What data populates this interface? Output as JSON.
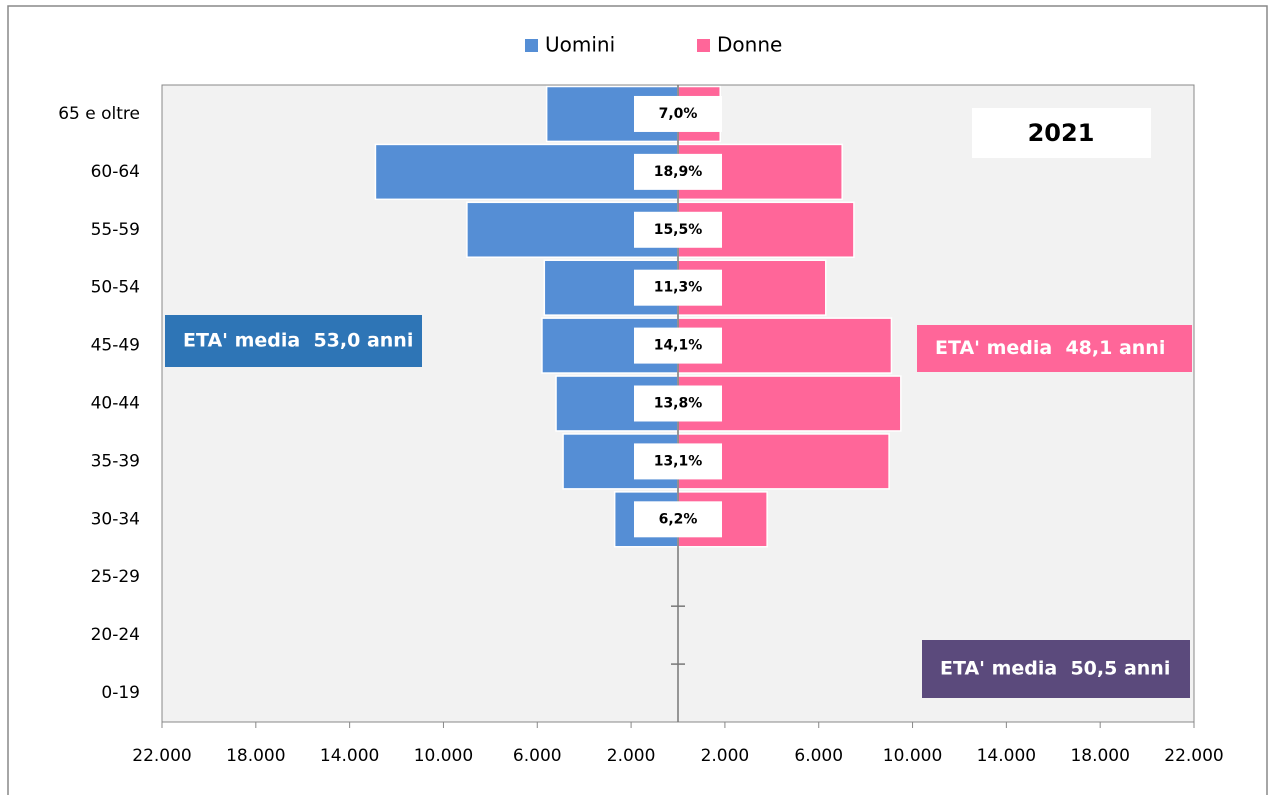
{
  "chart_data": {
    "type": "pyramid",
    "categories": [
      "65 e oltre",
      "60-64",
      "55-59",
      "50-54",
      "45-49",
      "40-44",
      "35-39",
      "30-34",
      "25-29",
      "20-24",
      "0-19"
    ],
    "series": [
      {
        "name": "Uomini",
        "color": "#558ed5",
        "values": [
          5600,
          12900,
          9000,
          5700,
          5800,
          5200,
          4900,
          2700,
          0,
          0,
          0
        ]
      },
      {
        "name": "Donne",
        "color": "#ff6699",
        "values": [
          1800,
          7000,
          7500,
          6300,
          9100,
          9500,
          9000,
          3800,
          0,
          0,
          0
        ]
      }
    ],
    "share_labels": [
      "7,0%",
      "18,9%",
      "15,5%",
      "11,3%",
      "14,1%",
      "13,8%",
      "13,1%",
      "6,2%",
      null,
      null,
      null
    ],
    "xlim": [
      -22000,
      22000
    ],
    "xticks": [
      {
        "value": -22000,
        "label": "22.000"
      },
      {
        "value": -18000,
        "label": "18.000"
      },
      {
        "value": -14000,
        "label": "14.000"
      },
      {
        "value": -10000,
        "label": "10.000"
      },
      {
        "value": -6000,
        "label": "6.000"
      },
      {
        "value": -2000,
        "label": "2.000"
      },
      {
        "value": 2000,
        "label": "2.000"
      },
      {
        "value": 6000,
        "label": "6.000"
      },
      {
        "value": 10000,
        "label": "10.000"
      },
      {
        "value": 14000,
        "label": "14.000"
      },
      {
        "value": 18000,
        "label": "18.000"
      },
      {
        "value": 22000,
        "label": "22.000"
      }
    ],
    "year_label": "2021",
    "annotations": [
      {
        "text": "ETA' media  53,0 anni",
        "color": "#2e75b6"
      },
      {
        "text": "ETA' media  48,1 anni",
        "color": "#ff6699"
      },
      {
        "text": "ETA' media  50,5 anni",
        "color": "#5b4a7c"
      }
    ]
  }
}
